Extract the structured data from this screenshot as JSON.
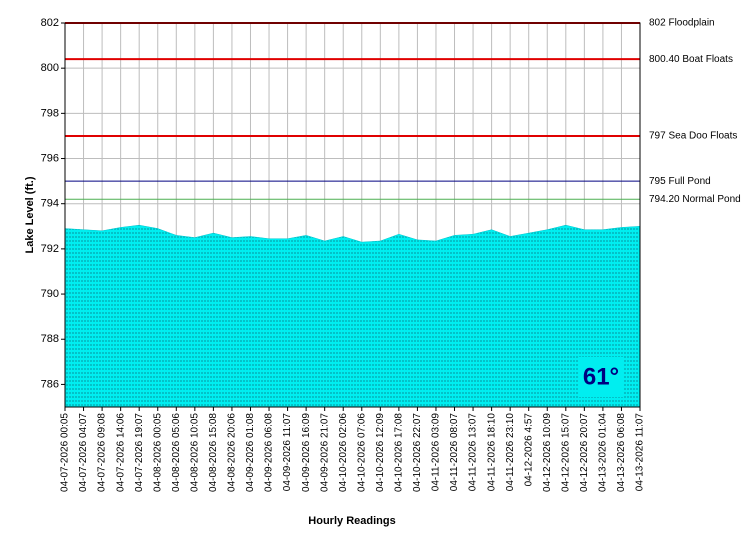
{
  "chart_data": {
    "type": "area",
    "ylabel": "Lake Level (ft.)",
    "xlabel": "Hourly Readings",
    "annotation": "61°",
    "color": "#00eef0",
    "grid": true,
    "ylim": [
      785,
      802
    ],
    "yticks": [
      786,
      788,
      790,
      792,
      794,
      796,
      798,
      800,
      802
    ],
    "reference_lines": [
      {
        "value": 802,
        "label": "802 Floodplain",
        "color": "#e00000"
      },
      {
        "value": 800.4,
        "label": "800.40 Boat Floats",
        "color": "#e00000"
      },
      {
        "value": 797,
        "label": "797 Sea Doo Floats",
        "color": "#e00000"
      },
      {
        "value": 795,
        "label": "795 Full Pond",
        "color": "#000080"
      },
      {
        "value": 794.2,
        "label": "794.20 Normal Pond",
        "color": "#4caf50"
      }
    ],
    "categories": [
      "04-07-2026 00:05",
      "04-07-2026 04:07",
      "04-07-2026 09:08",
      "04-07-2026 14:06",
      "04-07-2026 19:07",
      "04-08-2026 00:05",
      "04-08-2026 05:06",
      "04-08-2026 10:05",
      "04-08-2026 15:08",
      "04-08-2026 20:06",
      "04-09-2026 01:08",
      "04-09-2026 06:08",
      "04-09-2026 11:07",
      "04-09-2026 16:09",
      "04-09-2026 21:07",
      "04-10-2026 02:06",
      "04-10-2026 07:06",
      "04-10-2026 12:09",
      "04-10-2026 17:08",
      "04-10-2026 22:07",
      "04-11-2026 03:09",
      "04-11-2026 08:07",
      "04-11-2026 13:07",
      "04-11-2026 18:10",
      "04-11-2026 23:10",
      "04-12-2026 4:57",
      "04-12-2026 10:09",
      "04-12-2026 15:07",
      "04-12-2026 20:07",
      "04-13-2026 01:04",
      "04-13-2026 06:08",
      "04-13-2026 11:07"
    ],
    "values": [
      792.9,
      792.85,
      792.8,
      792.95,
      793.05,
      792.9,
      792.6,
      792.5,
      792.7,
      792.5,
      792.55,
      792.45,
      792.45,
      792.6,
      792.35,
      792.55,
      792.3,
      792.35,
      792.65,
      792.4,
      792.35,
      792.6,
      792.65,
      792.85,
      792.55,
      792.7,
      792.85,
      793.05,
      792.85,
      792.85,
      792.95,
      793.0
    ]
  }
}
